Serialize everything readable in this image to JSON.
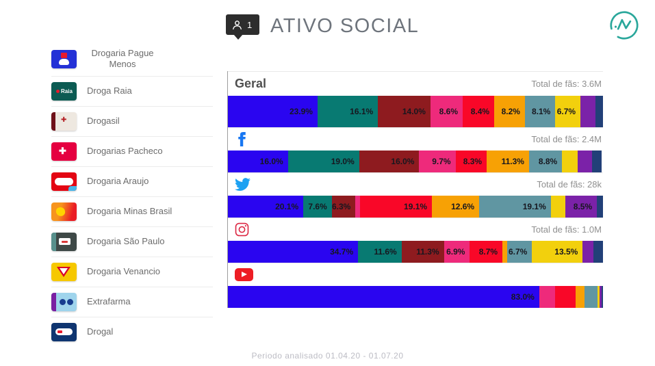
{
  "header": {
    "badge_count": "1",
    "title": "ATIVO SOCIAL"
  },
  "sidebar": {
    "brands": [
      {
        "name": "Drogaria Pague Menos",
        "slug": "pague-menos",
        "color": "#2a05f0"
      },
      {
        "name": "Droga Raia",
        "slug": "droga-raia",
        "color": "#087a72"
      },
      {
        "name": "Drogasil",
        "slug": "drogasil",
        "color": "#8e1b1f"
      },
      {
        "name": "Drogarias Pacheco",
        "slug": "pacheco",
        "color": "#ee2a7b"
      },
      {
        "name": "Drogaria Araujo",
        "slug": "araujo",
        "color": "#f90728"
      },
      {
        "name": "Drogaria Minas Brasil",
        "slug": "minas-brasil",
        "color": "#f7a105"
      },
      {
        "name": "Drogaria São Paulo",
        "slug": "sao-paulo",
        "color": "#6096a2"
      },
      {
        "name": "Drogaria Venancio",
        "slug": "venancio",
        "color": "#f2d00d"
      },
      {
        "name": "Extrafarma",
        "slug": "extrafarma",
        "color": "#7b22a8"
      },
      {
        "name": "Drogal",
        "slug": "drogal",
        "color": "#224078"
      }
    ]
  },
  "chart_data": {
    "type": "bar",
    "subtype": "horizontal-stacked-100pct",
    "unit": "%",
    "series_order": [
      "Drogaria Pague Menos",
      "Droga Raia",
      "Drogasil",
      "Drogarias Pacheco",
      "Drogaria Araujo",
      "Drogaria Minas Brasil",
      "Drogaria São Paulo",
      "Drogaria Venancio",
      "Extrafarma",
      "Drogal"
    ],
    "sections": [
      {
        "id": "geral",
        "title": "Geral",
        "icon": "",
        "total": "Total de fãs: 3.6M",
        "values": [
          23.9,
          16.1,
          14.0,
          8.6,
          8.4,
          8.2,
          8.1,
          6.7,
          4.0,
          2.0
        ],
        "labels": [
          "23.9%",
          "16.1%",
          "14.0%",
          "8.6%",
          "8.4%",
          "8.2%",
          "8.1%",
          "6.7%",
          "",
          ""
        ]
      },
      {
        "id": "facebook",
        "title": "",
        "icon": "facebook-icon",
        "total": "Total de fãs: 2.4M",
        "values": [
          16.0,
          19.0,
          16.0,
          9.7,
          8.3,
          11.3,
          8.8,
          4.1,
          3.9,
          2.6
        ],
        "labels": [
          "16.0%",
          "19.0%",
          "16.0%",
          "9.7%",
          "8.3%",
          "11.3%",
          "8.8%",
          "",
          "",
          ""
        ]
      },
      {
        "id": "twitter",
        "title": "",
        "icon": "twitter-icon",
        "total": "Total de fãs: 28k",
        "values": [
          20.1,
          7.6,
          6.3,
          1.3,
          19.1,
          12.6,
          19.1,
          3.8,
          8.5,
          1.6
        ],
        "labels": [
          "20.1%",
          "7.6%",
          "6.3%",
          "",
          "19.1%",
          "12.6%",
          "19.1%",
          "",
          "8.5%",
          ""
        ]
      },
      {
        "id": "instagram",
        "title": "",
        "icon": "instagram-icon",
        "total": "Total de fãs: 1.0M",
        "values": [
          34.7,
          11.6,
          11.3,
          6.9,
          8.7,
          1.2,
          6.7,
          13.5,
          2.8,
          2.6
        ],
        "labels": [
          "34.7%",
          "11.6%",
          "11.3%",
          "6.9%",
          "8.7%",
          "",
          "6.7%",
          "13.5%",
          "",
          ""
        ]
      },
      {
        "id": "youtube",
        "title": "",
        "icon": "youtube-icon",
        "total": "",
        "values": [
          83.0,
          0,
          0,
          4.2,
          5.5,
          2.4,
          3.5,
          0.5,
          0.6,
          0.3
        ],
        "labels": [
          "83.0%",
          "",
          "",
          "",
          "",
          "",
          "",
          "",
          "",
          ""
        ]
      }
    ]
  },
  "footer": {
    "text": "Periodo analisado 01.04.20 - 01.07.20"
  }
}
